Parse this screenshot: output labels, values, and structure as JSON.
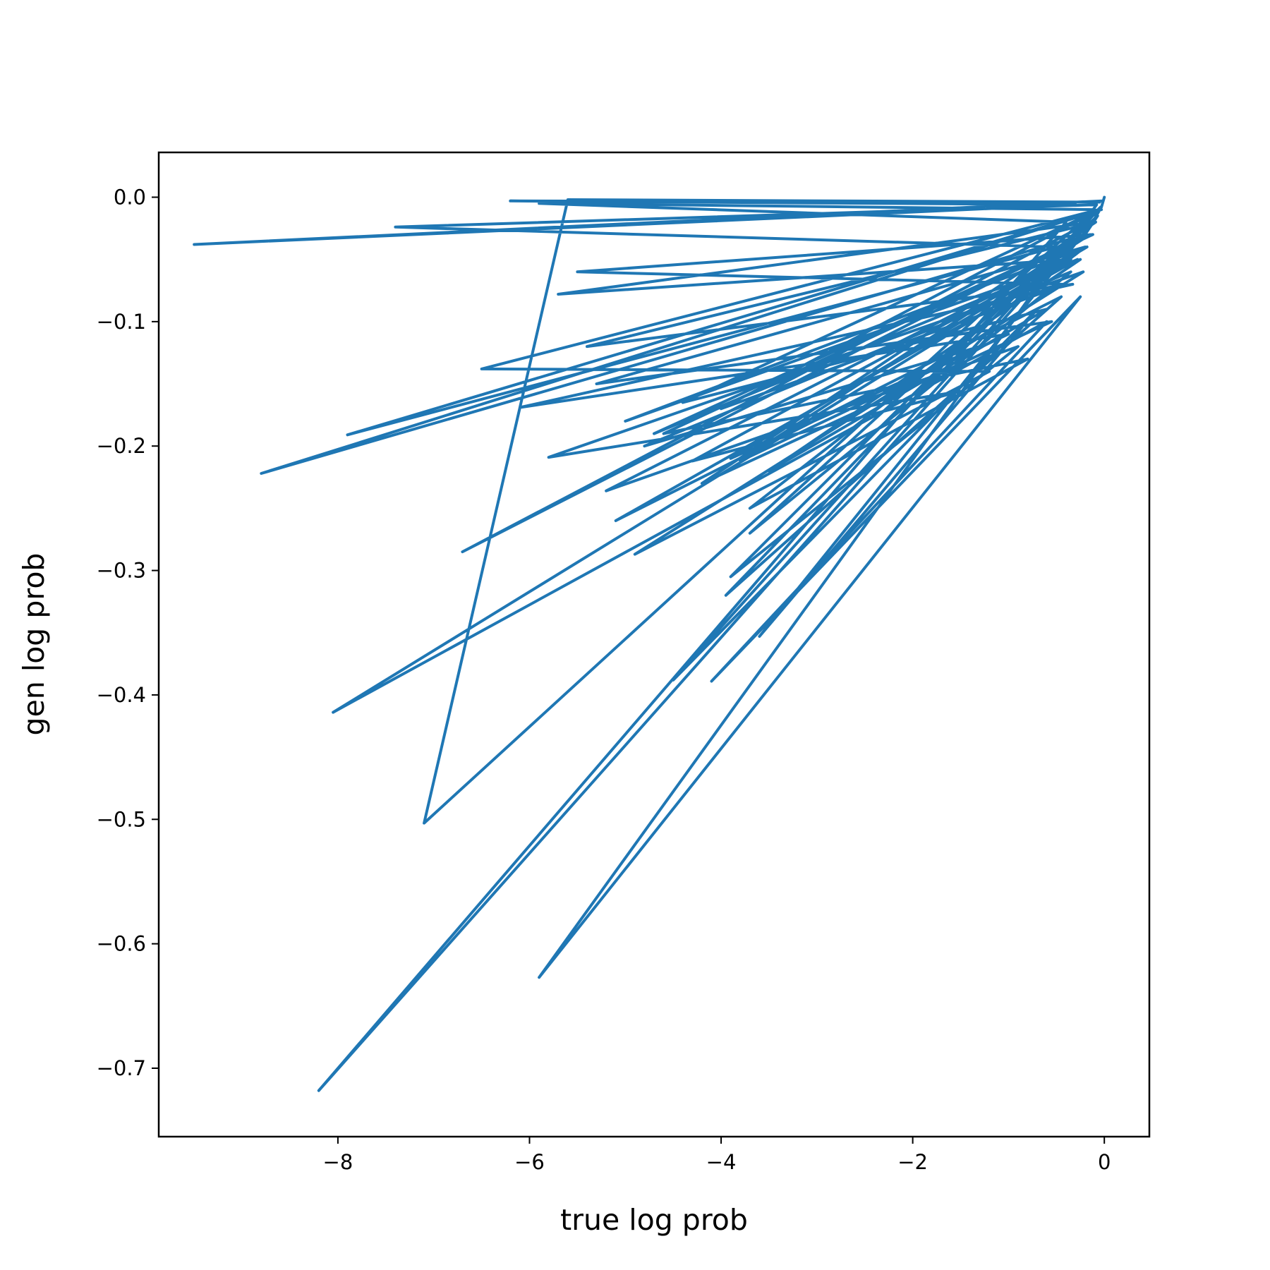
{
  "chart_data": {
    "type": "line",
    "title": "",
    "xlabel": "true log prob",
    "ylabel": "gen log prob",
    "xlim": [
      -9.87,
      0.47
    ],
    "ylim": [
      -0.755,
      0.036
    ],
    "xticks": [
      {
        "value": -8,
        "label": "−8"
      },
      {
        "value": -6,
        "label": "−6"
      },
      {
        "value": -4,
        "label": "−4"
      },
      {
        "value": -2,
        "label": "−2"
      },
      {
        "value": 0,
        "label": "0"
      }
    ],
    "yticks": [
      {
        "value": 0.0,
        "label": "0.0"
      },
      {
        "value": -0.1,
        "label": "−0.1"
      },
      {
        "value": -0.2,
        "label": "−0.2"
      },
      {
        "value": -0.3,
        "label": "−0.3"
      },
      {
        "value": -0.4,
        "label": "−0.4"
      },
      {
        "value": -0.5,
        "label": "−0.5"
      },
      {
        "value": -0.6,
        "label": "−0.6"
      },
      {
        "value": -0.7,
        "label": "−0.7"
      }
    ],
    "grid": false,
    "legend": "none",
    "colors": {
      "line": "#1f77b4",
      "axes": "#000000",
      "background": "#ffffff"
    },
    "series": [
      {
        "x": [
          -0.02,
          -9.5,
          -0.3,
          -6.2,
          -0.05,
          -5.6,
          -7.1,
          -0.1,
          -5.9,
          -0.4,
          -8.2,
          -0.15,
          -6.7,
          -0.2,
          -8.8,
          -0.03,
          -7.9,
          -0.5,
          -7.4,
          -0.08,
          -5.9,
          -0.25,
          -4.1,
          -0.6,
          -8.05,
          -0.35,
          -5.7,
          -0.12,
          -3.6,
          -0.7,
          -4.5,
          -0.04,
          -3.9,
          -0.9,
          -5.2,
          -0.18,
          -4.3,
          -1.5,
          -5.8,
          -0.22,
          -4.9,
          -1.2,
          -6.5,
          -0.06,
          -3.95,
          -0.45,
          -5.1,
          -0.28,
          -4.7,
          -0.15,
          -3.8,
          -1.0,
          -6.1,
          -0.33,
          -5.4,
          -0.09,
          -4.2,
          -0.55,
          -5.3,
          -0.2,
          -3.7,
          -0.8,
          -4.6,
          -0.12,
          -5.5,
          -0.4,
          -4.0,
          -0.05,
          -4.4,
          -0.6,
          -3.5,
          -0.25,
          -5.0,
          -0.18,
          -3.9,
          -1.3,
          -4.8,
          -0.35,
          -3.7,
          -0.07,
          -0.2,
          -0.03,
          0.0
        ],
        "y": [
          -0.003,
          -0.038,
          -0.006,
          -0.003,
          -0.004,
          -0.002,
          -0.503,
          -0.01,
          -0.005,
          -0.02,
          -0.718,
          -0.02,
          -0.285,
          -0.03,
          -0.222,
          -0.01,
          -0.191,
          -0.04,
          -0.024,
          -0.006,
          -0.627,
          -0.08,
          -0.389,
          -0.1,
          -0.414,
          -0.05,
          -0.078,
          -0.02,
          -0.353,
          -0.09,
          -0.388,
          -0.008,
          -0.305,
          -0.12,
          -0.236,
          -0.04,
          -0.212,
          -0.156,
          -0.209,
          -0.06,
          -0.287,
          -0.14,
          -0.138,
          -0.01,
          -0.32,
          -0.08,
          -0.26,
          -0.05,
          -0.19,
          -0.03,
          -0.212,
          -0.11,
          -0.169,
          -0.07,
          -0.12,
          -0.02,
          -0.23,
          -0.1,
          -0.15,
          -0.04,
          -0.25,
          -0.13,
          -0.19,
          -0.03,
          -0.06,
          -0.07,
          -0.17,
          -0.01,
          -0.165,
          -0.09,
          -0.22,
          -0.05,
          -0.18,
          -0.04,
          -0.21,
          -0.12,
          -0.2,
          -0.06,
          -0.27,
          -0.015,
          -0.03,
          -0.008,
          0.0
        ]
      }
    ]
  }
}
